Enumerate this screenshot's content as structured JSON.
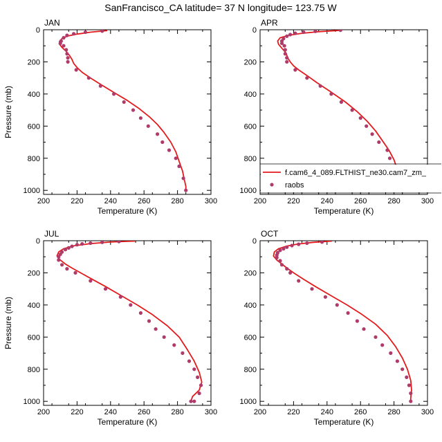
{
  "figure_title": "SanFrancisco_CA  latitude= 37 N longitude= 123.75 W",
  "colors": {
    "model": "#e31a1c",
    "obs": "#b03a6a"
  },
  "legend": {
    "model_label": "f.cam6_4_089.FLTHIST_ne30.cam7_zm_",
    "obs_label": "raobs",
    "panel": "APR"
  },
  "chart_data": [
    {
      "type": "line",
      "panel": "JAN",
      "xlabel": "Temperature (K)",
      "ylabel": "Pressure (mb)",
      "xlim": [
        200,
        300
      ],
      "ylim": [
        1025,
        0
      ],
      "xticks": [
        "200",
        "220",
        "240",
        "260",
        "280",
        "300"
      ],
      "yticks": [
        "0",
        "200",
        "400",
        "600",
        "800",
        "1000"
      ],
      "series": [
        {
          "name": "f.cam6_4_089.FLTHIST_ne30.cam7_zm_",
          "kind": "line",
          "points": [
            [
              238,
              5
            ],
            [
              228,
              15
            ],
            [
              220,
              27
            ],
            [
              214,
              40
            ],
            [
              211,
              55
            ],
            [
              209.5,
              72
            ],
            [
              209.5,
              90
            ],
            [
              211,
              110
            ],
            [
              213.5,
              135
            ],
            [
              215.5,
              160
            ],
            [
              217,
              185
            ],
            [
              218,
              210
            ],
            [
              220,
              235
            ],
            [
              223,
              265
            ],
            [
              228,
              300
            ],
            [
              234,
              340
            ],
            [
              242,
              390
            ],
            [
              250,
              440
            ],
            [
              257,
              490
            ],
            [
              263,
              540
            ],
            [
              268,
              590
            ],
            [
              272,
              640
            ],
            [
              276,
              700
            ],
            [
              279,
              760
            ],
            [
              281,
              820
            ],
            [
              283,
              880
            ],
            [
              284,
              930
            ],
            [
              285,
              975
            ],
            [
              285,
              1000
            ]
          ]
        },
        {
          "name": "raobs",
          "kind": "scatter",
          "points": [
            [
              235,
              8
            ],
            [
              225,
              15
            ],
            [
              218,
              25
            ],
            [
              214,
              35
            ],
            [
              212,
              50
            ],
            [
              210.5,
              70
            ],
            [
              210,
              85
            ],
            [
              212,
              100
            ],
            [
              213.5,
              125
            ],
            [
              214,
              150
            ],
            [
              214.5,
              175
            ],
            [
              214.5,
              200
            ],
            [
              219.5,
              250
            ],
            [
              227,
              300
            ],
            [
              234,
              350
            ],
            [
              242,
              400
            ],
            [
              248,
              450
            ],
            [
              253.5,
              500
            ],
            [
              258,
              550
            ],
            [
              262.5,
              600
            ],
            [
              268,
              650
            ],
            [
              271,
              700
            ],
            [
              275,
              750
            ],
            [
              279,
              800
            ],
            [
              281,
              850
            ],
            [
              283.5,
              925
            ],
            [
              285,
              1000
            ]
          ]
        }
      ]
    },
    {
      "type": "line",
      "panel": "APR",
      "xlabel": "Temperature (K)",
      "ylabel": "",
      "xlim": [
        200,
        300
      ],
      "ylim": [
        1025,
        0
      ],
      "xticks": [
        "200",
        "220",
        "240",
        "260",
        "280",
        "300"
      ],
      "yticks": [
        "0",
        "200",
        "400",
        "600",
        "800",
        "1000"
      ],
      "series": [
        {
          "name": "f.cam6_4_089.FLTHIST_ne30.cam7_zm_",
          "kind": "line",
          "points": [
            [
              249,
              3
            ],
            [
              235,
              12
            ],
            [
              225,
              22
            ],
            [
              217,
              35
            ],
            [
              212,
              50
            ],
            [
              210.5,
              70
            ],
            [
              211,
              90
            ],
            [
              213,
              115
            ],
            [
              215.5,
              145
            ],
            [
              216.5,
              175
            ],
            [
              218,
              200
            ],
            [
              220,
              225
            ],
            [
              223,
              250
            ],
            [
              228,
              285
            ],
            [
              234,
              330
            ],
            [
              242,
              385
            ],
            [
              251,
              450
            ],
            [
              258,
              510
            ],
            [
              264,
              570
            ],
            [
              269,
              630
            ],
            [
              273,
              690
            ],
            [
              277,
              750
            ],
            [
              280,
              810
            ],
            [
              282,
              870
            ],
            [
              284,
              930
            ],
            [
              285,
              1000
            ]
          ]
        },
        {
          "name": "raobs",
          "kind": "scatter",
          "points": [
            [
              248,
              3
            ],
            [
              233,
              10
            ],
            [
              226,
              15
            ],
            [
              221,
              22
            ],
            [
              218,
              30
            ],
            [
              216,
              40
            ],
            [
              214,
              55
            ],
            [
              213,
              70
            ],
            [
              213,
              85
            ],
            [
              214.5,
              100
            ],
            [
              215,
              125
            ],
            [
              215,
              150
            ],
            [
              216,
              175
            ],
            [
              216,
              200
            ],
            [
              221,
              250
            ],
            [
              228,
              300
            ],
            [
              236,
              350
            ],
            [
              242.5,
              400
            ],
            [
              248.5,
              450
            ],
            [
              255,
              500
            ],
            [
              260,
              550
            ],
            [
              263.5,
              600
            ],
            [
              267,
              650
            ],
            [
              271,
              700
            ],
            [
              276,
              750
            ],
            [
              277.5,
              800
            ],
            [
              280,
              850
            ],
            [
              283,
              925
            ],
            [
              285,
              1000
            ]
          ]
        }
      ]
    },
    {
      "type": "line",
      "panel": "JUL",
      "xlabel": "Temperature (K)",
      "ylabel": "Pressure (mb)",
      "xlim": [
        200,
        300
      ],
      "ylim": [
        1025,
        0
      ],
      "xticks": [
        "200",
        "220",
        "240",
        "260",
        "280",
        "300"
      ],
      "yticks": [
        "0",
        "200",
        "400",
        "600",
        "800",
        "1000"
      ],
      "series": [
        {
          "name": "f.cam6_4_089.FLTHIST_ne30.cam7_zm_",
          "kind": "line",
          "points": [
            [
              255,
              2
            ],
            [
              240,
              8
            ],
            [
              228,
              18
            ],
            [
              218,
              32
            ],
            [
              212,
              50
            ],
            [
              209,
              70
            ],
            [
              208,
              95
            ],
            [
              210,
              120
            ],
            [
              213,
              145
            ],
            [
              217,
              170
            ],
            [
              223,
              205
            ],
            [
              229,
              240
            ],
            [
              237,
              285
            ],
            [
              246,
              340
            ],
            [
              256,
              400
            ],
            [
              265,
              460
            ],
            [
              274,
              530
            ],
            [
              281,
              600
            ],
            [
              286,
              680
            ],
            [
              290,
              750
            ],
            [
              293,
              820
            ],
            [
              294.5,
              880
            ],
            [
              293,
              930
            ],
            [
              289,
              970
            ],
            [
              288,
              1000
            ]
          ]
        },
        {
          "name": "raobs",
          "kind": "scatter",
          "points": [
            [
              245,
              5
            ],
            [
              235,
              10
            ],
            [
              228,
              15
            ],
            [
              223,
              20
            ],
            [
              220,
              25
            ],
            [
              217,
              35
            ],
            [
              215,
              45
            ],
            [
              213,
              55
            ],
            [
              211,
              70
            ],
            [
              210,
              85
            ],
            [
              209,
              100
            ],
            [
              209,
              120
            ],
            [
              211,
              150
            ],
            [
              214,
              175
            ],
            [
              219,
              200
            ],
            [
              228,
              250
            ],
            [
              237,
              300
            ],
            [
              246,
              350
            ],
            [
              252,
              400
            ],
            [
              258,
              450
            ],
            [
              263,
              500
            ],
            [
              267,
              550
            ],
            [
              272,
              600
            ],
            [
              278,
              650
            ],
            [
              283,
              700
            ],
            [
              287,
              750
            ],
            [
              290,
              800
            ],
            [
              292,
              850
            ],
            [
              294,
              900
            ],
            [
              293,
              950
            ],
            [
              290,
              1000
            ],
            [
              288,
              1000
            ]
          ]
        }
      ]
    },
    {
      "type": "line",
      "panel": "OCT",
      "xlabel": "Temperature (K)",
      "ylabel": "",
      "xlim": [
        200,
        300
      ],
      "ylim": [
        1025,
        0
      ],
      "xticks": [
        "200",
        "220",
        "240",
        "260",
        "280",
        "300"
      ],
      "yticks": [
        "0",
        "200",
        "400",
        "600",
        "800",
        "1000"
      ],
      "series": [
        {
          "name": "f.cam6_4_089.FLTHIST_ne30.cam7_zm_",
          "kind": "line",
          "points": [
            [
              243,
              2
            ],
            [
              232,
              10
            ],
            [
              223,
              20
            ],
            [
              216,
              33
            ],
            [
              211,
              50
            ],
            [
              208.5,
              70
            ],
            [
              208,
              95
            ],
            [
              210,
              120
            ],
            [
              213,
              145
            ],
            [
              216,
              170
            ],
            [
              220,
              200
            ],
            [
              226,
              240
            ],
            [
              233,
              285
            ],
            [
              242,
              340
            ],
            [
              252,
              400
            ],
            [
              261,
              460
            ],
            [
              269,
              520
            ],
            [
              276,
              590
            ],
            [
              281,
              660
            ],
            [
              285,
              730
            ],
            [
              288,
              800
            ],
            [
              290,
              870
            ],
            [
              290.5,
              930
            ],
            [
              290,
              980
            ],
            [
              290,
              1000
            ]
          ]
        },
        {
          "name": "raobs",
          "kind": "scatter",
          "points": [
            [
              237,
              8
            ],
            [
              228,
              15
            ],
            [
              223,
              22
            ],
            [
              219,
              30
            ],
            [
              216,
              40
            ],
            [
              214,
              50
            ],
            [
              212,
              60
            ],
            [
              210.5,
              75
            ],
            [
              210,
              90
            ],
            [
              210,
              105
            ],
            [
              212,
              125
            ],
            [
              213,
              150
            ],
            [
              216,
              175
            ],
            [
              218,
              200
            ],
            [
              223,
              250
            ],
            [
              231,
              300
            ],
            [
              239,
              350
            ],
            [
              246,
              400
            ],
            [
              252.5,
              450
            ],
            [
              258,
              500
            ],
            [
              262,
              550
            ],
            [
              269,
              600
            ],
            [
              273,
              650
            ],
            [
              278,
              700
            ],
            [
              282,
              750
            ],
            [
              285,
              800
            ],
            [
              287.5,
              850
            ],
            [
              289,
              900
            ],
            [
              290,
              950
            ],
            [
              290,
              1000
            ]
          ]
        }
      ]
    }
  ]
}
